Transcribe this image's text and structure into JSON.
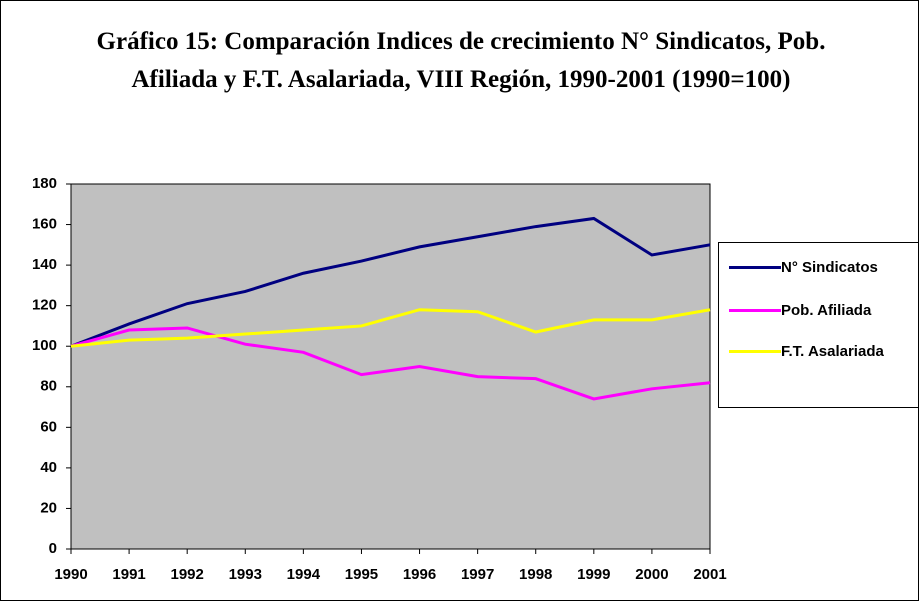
{
  "chart_data": {
    "type": "line",
    "title": "Gráfico 15: Comparación Indices de crecimiento N° Sindicatos, Pob. Afiliada y F.T. Asalariada, VIII Región, 1990-2001 (1990=100)",
    "categories": [
      "1990",
      "1991",
      "1992",
      "1993",
      "1994",
      "1995",
      "1996",
      "1997",
      "1998",
      "1999",
      "2000",
      "2001"
    ],
    "series": [
      {
        "name": "N° Sindicatos",
        "color": "#000080",
        "values": [
          100,
          111,
          121,
          127,
          136,
          142,
          149,
          154,
          159,
          163,
          145,
          150
        ]
      },
      {
        "name": "Pob. Afiliada",
        "color": "#ff00ff",
        "values": [
          100,
          108,
          109,
          101,
          97,
          86,
          90,
          85,
          84,
          74,
          79,
          82
        ]
      },
      {
        "name": "F.T. Asalariada",
        "color": "#ffff00",
        "values": [
          100,
          103,
          104,
          106,
          108,
          110,
          118,
          117,
          107,
          113,
          113,
          118
        ]
      }
    ],
    "ylim": [
      0,
      180
    ],
    "yticks": [
      0,
      20,
      40,
      60,
      80,
      100,
      120,
      140,
      160,
      180
    ],
    "grid": false,
    "legend": "right"
  }
}
